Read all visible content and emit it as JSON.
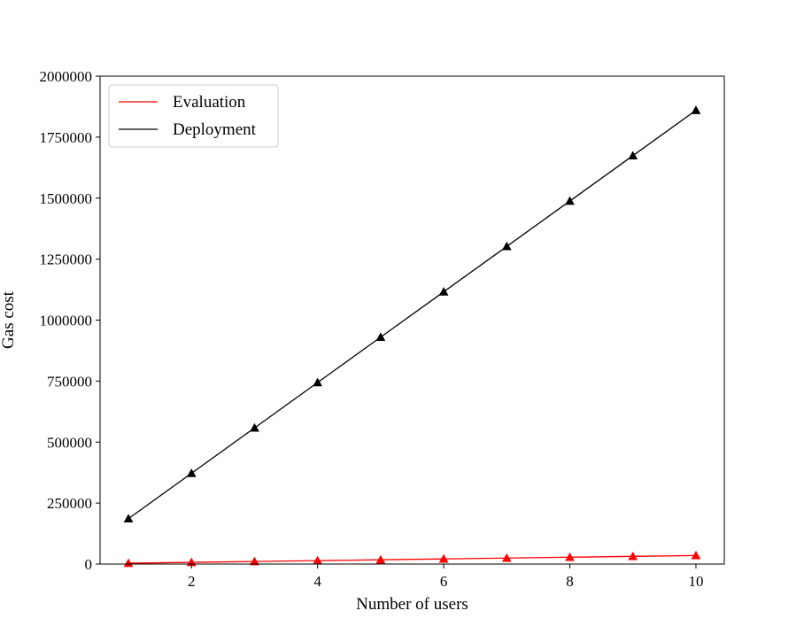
{
  "chart_data": {
    "type": "line",
    "title": "",
    "xlabel": "Number of users",
    "ylabel": "Gas cost",
    "x": [
      1,
      2,
      3,
      4,
      5,
      6,
      7,
      8,
      9,
      10
    ],
    "xlim": [
      0.55,
      10.45
    ],
    "ylim": [
      0,
      2000000
    ],
    "xticks": [
      2,
      4,
      6,
      8,
      10
    ],
    "yticks": [
      0,
      250000,
      500000,
      750000,
      1000000,
      1250000,
      1500000,
      1750000,
      2000000
    ],
    "grid": false,
    "legend": {
      "placement": "top-left"
    },
    "series": [
      {
        "name": "Evaluation",
        "color": "#ff0000",
        "marker": "triangle",
        "values": [
          3500,
          7000,
          10500,
          14000,
          17500,
          21000,
          24500,
          28000,
          31500,
          35000
        ]
      },
      {
        "name": "Deployment",
        "color": "#000000",
        "marker": "triangle",
        "values": [
          186000,
          372000,
          558000,
          744000,
          930000,
          1116000,
          1302000,
          1488000,
          1674000,
          1860000
        ]
      }
    ]
  }
}
